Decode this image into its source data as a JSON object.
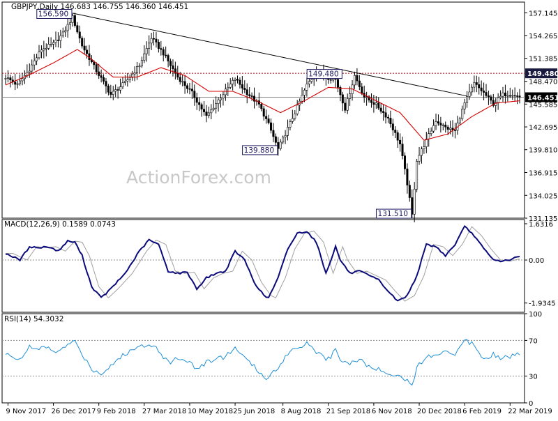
{
  "watermark": "ActionForex.com",
  "chart_data": [
    {
      "type": "candlestick",
      "title": "GBPJPY,Daily  146.683 146.755 146.360 146.451",
      "ylim": [
        131.135,
        158.5
      ],
      "yticks": [
        "157.145",
        "154.265",
        "151.385",
        "148.470",
        "145.585",
        "142.695",
        "139.810",
        "136.915",
        "134.025",
        "131.135"
      ],
      "xticks": [
        "9 Nov 2017",
        "26 Dec 2017",
        "9 Feb 2018",
        "27 Mar 2018",
        "10 May 2018",
        "25 Jun 2018",
        "8 Aug 2018",
        "21 Sep 2018",
        "6 Nov 2018",
        "20 Dec 2018",
        "6 Feb 2019",
        "22 Mar 2019"
      ],
      "price_knots": [
        [
          0,
          149.0
        ],
        [
          5,
          148.0
        ],
        [
          10,
          150.0
        ],
        [
          15,
          152.5
        ],
        [
          20,
          153.2
        ],
        [
          24,
          154.5
        ],
        [
          28,
          156.59
        ],
        [
          32,
          153.0
        ],
        [
          38,
          149.8
        ],
        [
          44,
          146.8
        ],
        [
          50,
          148.3
        ],
        [
          56,
          150.5
        ],
        [
          61,
          154.0
        ],
        [
          66,
          152.0
        ],
        [
          72,
          149.0
        ],
        [
          78,
          147.0
        ],
        [
          84,
          144.0
        ],
        [
          90,
          146.5
        ],
        [
          96,
          148.8
        ],
        [
          101,
          147.0
        ],
        [
          106,
          145.5
        ],
        [
          110,
          143.0
        ],
        [
          114,
          139.88
        ],
        [
          118,
          142.5
        ],
        [
          122,
          145.2
        ],
        [
          126,
          148.0
        ],
        [
          130,
          149.6
        ],
        [
          134,
          149.0
        ],
        [
          138,
          148.7
        ],
        [
          142,
          145.0
        ],
        [
          146,
          149.2
        ],
        [
          150,
          146.5
        ],
        [
          155,
          145.5
        ],
        [
          160,
          143.8
        ],
        [
          165,
          140.5
        ],
        [
          168,
          135.5
        ],
        [
          170,
          131.51
        ],
        [
          172,
          138.5
        ],
        [
          176,
          141.0
        ],
        [
          180,
          143.5
        ],
        [
          184,
          142.6
        ],
        [
          188,
          142.2
        ],
        [
          192,
          145.7
        ],
        [
          196,
          148.2
        ],
        [
          200,
          147.0
        ],
        [
          204,
          145.6
        ],
        [
          208,
          146.8
        ],
        [
          212,
          146.9
        ],
        [
          215,
          146.451
        ]
      ],
      "moving_average": [
        [
          0,
          148.0
        ],
        [
          10,
          149.3
        ],
        [
          20,
          150.8
        ],
        [
          30,
          152.5
        ],
        [
          35,
          151.5
        ],
        [
          45,
          149.0
        ],
        [
          55,
          149.0
        ],
        [
          65,
          150.2
        ],
        [
          75,
          149.2
        ],
        [
          85,
          147.2
        ],
        [
          95,
          147.2
        ],
        [
          105,
          146.0
        ],
        [
          115,
          144.5
        ],
        [
          125,
          146.0
        ],
        [
          135,
          147.7
        ],
        [
          145,
          147.5
        ],
        [
          155,
          146.0
        ],
        [
          165,
          144.5
        ],
        [
          175,
          141.0
        ],
        [
          185,
          141.8
        ],
        [
          195,
          144.0
        ],
        [
          205,
          145.7
        ],
        [
          215,
          146.0
        ]
      ],
      "trendline": [
        [
          28,
          157.1
        ],
        [
          193,
          146.6
        ]
      ],
      "reference_level": 149.48,
      "value_tags": [
        {
          "label": "149.480",
          "value": 149.48,
          "style": "dark"
        },
        {
          "label": "146.451",
          "value": 146.451,
          "style": "black"
        }
      ],
      "annotations": [
        {
          "label": "156.590",
          "index": 28,
          "value": 157.0,
          "position": "left"
        },
        {
          "label": "149.480",
          "index": 141,
          "value": 149.4,
          "position": "left"
        },
        {
          "label": "139.880",
          "index": 114,
          "value": 139.75,
          "position": "left"
        },
        {
          "label": "131.510",
          "index": 170,
          "value": 131.7,
          "position": "left"
        }
      ]
    },
    {
      "type": "line",
      "title": "MACD(12,26,9) 0.1589 0.0743",
      "ylim": [
        -2.35,
        1.82
      ],
      "yticks": [
        "1.6316",
        "0.00",
        "-1.9345"
      ],
      "macd_knots": [
        [
          0,
          0.3
        ],
        [
          6,
          0.0
        ],
        [
          10,
          0.6
        ],
        [
          14,
          0.55
        ],
        [
          18,
          0.6
        ],
        [
          22,
          0.4
        ],
        [
          26,
          0.85
        ],
        [
          29,
          0.8
        ],
        [
          32,
          0.2
        ],
        [
          36,
          -1.2
        ],
        [
          40,
          -1.7
        ],
        [
          44,
          -1.3
        ],
        [
          50,
          -0.6
        ],
        [
          56,
          0.4
        ],
        [
          60,
          0.9
        ],
        [
          64,
          0.7
        ],
        [
          68,
          -0.5
        ],
        [
          72,
          -0.6
        ],
        [
          76,
          -0.55
        ],
        [
          80,
          -1.3
        ],
        [
          84,
          -0.8
        ],
        [
          88,
          -0.6
        ],
        [
          92,
          -0.5
        ],
        [
          96,
          0.4
        ],
        [
          100,
          0.0
        ],
        [
          104,
          -1.0
        ],
        [
          108,
          -1.6
        ],
        [
          110,
          -1.7
        ],
        [
          114,
          -0.8
        ],
        [
          118,
          0.5
        ],
        [
          122,
          1.2
        ],
        [
          126,
          1.3
        ],
        [
          130,
          0.8
        ],
        [
          134,
          -0.6
        ],
        [
          138,
          0.6
        ],
        [
          140,
          0.0
        ],
        [
          144,
          -0.6
        ],
        [
          148,
          -0.5
        ],
        [
          152,
          -0.7
        ],
        [
          156,
          -0.9
        ],
        [
          160,
          -1.4
        ],
        [
          164,
          -1.85
        ],
        [
          168,
          -1.6
        ],
        [
          172,
          -0.7
        ],
        [
          176,
          0.7
        ],
        [
          180,
          0.6
        ],
        [
          184,
          0.2
        ],
        [
          188,
          0.7
        ],
        [
          192,
          1.5
        ],
        [
          196,
          1.1
        ],
        [
          200,
          0.5
        ],
        [
          204,
          0.0
        ],
        [
          208,
          -0.05
        ],
        [
          212,
          0.05
        ],
        [
          215,
          0.16
        ]
      ],
      "signal_lag": 3,
      "zero_line": true
    },
    {
      "type": "line",
      "title": "RSI(14) 54.3032",
      "ylim": [
        0,
        100
      ],
      "yticks": [
        "100",
        "70",
        "30",
        "0"
      ],
      "levels": [
        70,
        30
      ],
      "rsi_knots": [
        [
          0,
          54
        ],
        [
          6,
          50
        ],
        [
          10,
          62
        ],
        [
          14,
          60
        ],
        [
          18,
          62
        ],
        [
          22,
          56
        ],
        [
          26,
          66
        ],
        [
          29,
          68
        ],
        [
          32,
          55
        ],
        [
          36,
          38
        ],
        [
          40,
          33
        ],
        [
          44,
          42
        ],
        [
          50,
          55
        ],
        [
          56,
          63
        ],
        [
          60,
          67
        ],
        [
          64,
          60
        ],
        [
          68,
          45
        ],
        [
          72,
          50
        ],
        [
          76,
          48
        ],
        [
          80,
          38
        ],
        [
          84,
          45
        ],
        [
          88,
          50
        ],
        [
          92,
          52
        ],
        [
          96,
          62
        ],
        [
          100,
          50
        ],
        [
          104,
          40
        ],
        [
          108,
          30
        ],
        [
          110,
          28
        ],
        [
          114,
          40
        ],
        [
          118,
          56
        ],
        [
          122,
          62
        ],
        [
          126,
          68
        ],
        [
          130,
          58
        ],
        [
          134,
          47
        ],
        [
          138,
          58
        ],
        [
          140,
          50
        ],
        [
          144,
          44
        ],
        [
          148,
          50
        ],
        [
          152,
          40
        ],
        [
          156,
          37
        ],
        [
          160,
          35
        ],
        [
          164,
          30
        ],
        [
          168,
          25
        ],
        [
          170,
          22
        ],
        [
          172,
          38
        ],
        [
          176,
          54
        ],
        [
          180,
          52
        ],
        [
          184,
          60
        ],
        [
          188,
          55
        ],
        [
          192,
          70
        ],
        [
          196,
          66
        ],
        [
          200,
          50
        ],
        [
          204,
          55
        ],
        [
          208,
          50
        ],
        [
          212,
          53
        ],
        [
          215,
          54.3
        ]
      ]
    }
  ]
}
